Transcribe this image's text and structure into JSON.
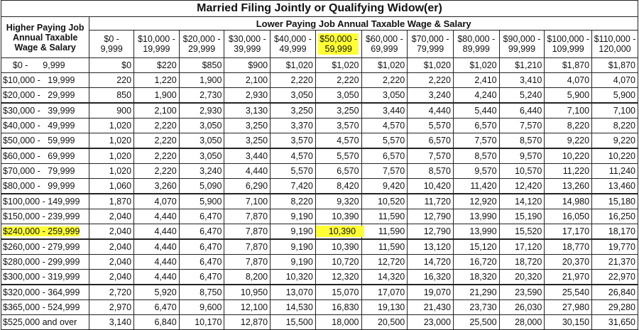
{
  "title": "Married Filing Jointly or Qualifying Widow(er)",
  "higher_paying_header": [
    "Higher Paying Job",
    "Annual Taxable",
    "Wage & Salary"
  ],
  "lower_paying_header": "Lower Paying Job Annual Taxable Wage & Salary",
  "columns": [
    [
      "$0 -",
      "9,999"
    ],
    [
      "$10,000 -",
      "19,999"
    ],
    [
      "$20,000 -",
      "29,999"
    ],
    [
      "$30,000 -",
      "39,999"
    ],
    [
      "$40,000 -",
      "49,999"
    ],
    [
      "$50,000 -",
      "59,999"
    ],
    [
      "$60,000 -",
      "69,999"
    ],
    [
      "$70,000 -",
      "79,999"
    ],
    [
      "$80,000 -",
      "89,999"
    ],
    [
      "$90,000 -",
      "99,999"
    ],
    [
      "$100,000 -",
      "109,999"
    ],
    [
      "$110,000 -",
      "120,000"
    ]
  ],
  "highlight": {
    "column_index": 5,
    "row_index": 11,
    "cell_column_index": 5,
    "color": "#ffff33"
  },
  "rows": [
    {
      "label": "    $0 -      9,999",
      "values": [
        "$0",
        "$220",
        "$850",
        "$900",
        "$1,020",
        "$1,020",
        "$1,020",
        "$1,020",
        "$1,020",
        "$1,210",
        "$1,870",
        "$1,870"
      ],
      "group_start": false
    },
    {
      "label": "$10,000 -   19,999",
      "values": [
        "220",
        "1,220",
        "1,900",
        "2,100",
        "2,220",
        "2,220",
        "2,220",
        "2,220",
        "2,410",
        "3,410",
        "4,070",
        "4,070"
      ],
      "group_start": false
    },
    {
      "label": "$20,000 -   29,999",
      "values": [
        "850",
        "1,900",
        "2,730",
        "2,930",
        "3,050",
        "3,050",
        "3,050",
        "3,240",
        "4,240",
        "5,240",
        "5,900",
        "5,900"
      ],
      "group_start": false
    },
    {
      "label": "$30,000 -   39,999",
      "values": [
        "900",
        "2,100",
        "2,930",
        "3,130",
        "3,250",
        "3,250",
        "3,440",
        "4,440",
        "5,440",
        "6,440",
        "7,100",
        "7,100"
      ],
      "group_start": true
    },
    {
      "label": "$40,000 -   49,999",
      "values": [
        "1,020",
        "2,220",
        "3,050",
        "3,250",
        "3,370",
        "3,570",
        "4,570",
        "5,570",
        "6,570",
        "7,570",
        "8,220",
        "8,220"
      ],
      "group_start": false
    },
    {
      "label": "$50,000 -   59,999",
      "values": [
        "1,020",
        "2,220",
        "3,050",
        "3,250",
        "3,570",
        "4,570",
        "5,570",
        "6,570",
        "7,570",
        "8,570",
        "9,220",
        "9,220"
      ],
      "group_start": false
    },
    {
      "label": "$60,000 -   69,999",
      "values": [
        "1,020",
        "2,220",
        "3,050",
        "3,440",
        "4,570",
        "5,570",
        "6,570",
        "7,570",
        "8,570",
        "9,570",
        "10,220",
        "10,220"
      ],
      "group_start": true
    },
    {
      "label": "$70,000 -   79,999",
      "values": [
        "1,020",
        "2,220",
        "3,240",
        "4,440",
        "5,570",
        "6,570",
        "7,570",
        "8,570",
        "9,570",
        "10,570",
        "11,220",
        "11,240"
      ],
      "group_start": false
    },
    {
      "label": "$80,000 -   99,999",
      "values": [
        "1,060",
        "3,260",
        "5,090",
        "6,290",
        "7,420",
        "8,420",
        "9,420",
        "10,420",
        "11,420",
        "12,420",
        "13,260",
        "13,460"
      ],
      "group_start": false
    },
    {
      "label": "$100,000 - 149,999",
      "values": [
        "1,870",
        "4,070",
        "5,900",
        "7,100",
        "8,220",
        "9,320",
        "10,520",
        "11,720",
        "12,920",
        "14,120",
        "14,980",
        "15,180"
      ],
      "group_start": true
    },
    {
      "label": "$150,000 - 239,999",
      "values": [
        "2,040",
        "4,440",
        "6,470",
        "7,870",
        "9,190",
        "10,390",
        "11,590",
        "12,790",
        "13,990",
        "15,190",
        "16,050",
        "16,250"
      ],
      "group_start": false
    },
    {
      "label": "$240,000 - 259,999",
      "values": [
        "2,040",
        "4,440",
        "6,470",
        "7,870",
        "9,190",
        "10,390",
        "11,590",
        "12,790",
        "13,990",
        "15,520",
        "17,170",
        "18,170"
      ],
      "group_start": false
    },
    {
      "label": "$260,000 - 279,999",
      "values": [
        "2,040",
        "4,440",
        "6,470",
        "7,870",
        "9,190",
        "10,390",
        "11,590",
        "13,120",
        "15,120",
        "17,120",
        "18,770",
        "19,770"
      ],
      "group_start": true
    },
    {
      "label": "$280,000 - 299,999",
      "values": [
        "2,040",
        "4,440",
        "6,470",
        "7,870",
        "9,190",
        "10,720",
        "12,720",
        "14,720",
        "16,720",
        "18,720",
        "20,370",
        "21,370"
      ],
      "group_start": false
    },
    {
      "label": "$300,000 - 319,999",
      "values": [
        "2,040",
        "4,440",
        "6,470",
        "8,200",
        "10,320",
        "12,320",
        "14,320",
        "16,320",
        "18,320",
        "20,320",
        "21,970",
        "22,970"
      ],
      "group_start": false
    },
    {
      "label": "$320,000 - 364,999",
      "values": [
        "2,720",
        "5,920",
        "8,750",
        "10,950",
        "13,070",
        "15,070",
        "17,070",
        "19,070",
        "21,290",
        "23,590",
        "25,540",
        "26,840"
      ],
      "group_start": true
    },
    {
      "label": "$365,000 - 524,999",
      "values": [
        "2,970",
        "6,470",
        "9,600",
        "12,100",
        "14,530",
        "16,830",
        "19,130",
        "21,430",
        "23,730",
        "26,030",
        "27,980",
        "29,280"
      ],
      "group_start": false
    },
    {
      "label": "$525,000 and over",
      "values": [
        "3,140",
        "6,840",
        "10,170",
        "12,870",
        "15,500",
        "18,000",
        "20,500",
        "23,000",
        "25,500",
        "28,000",
        "30,150",
        "31,650"
      ],
      "group_start": false
    }
  ]
}
